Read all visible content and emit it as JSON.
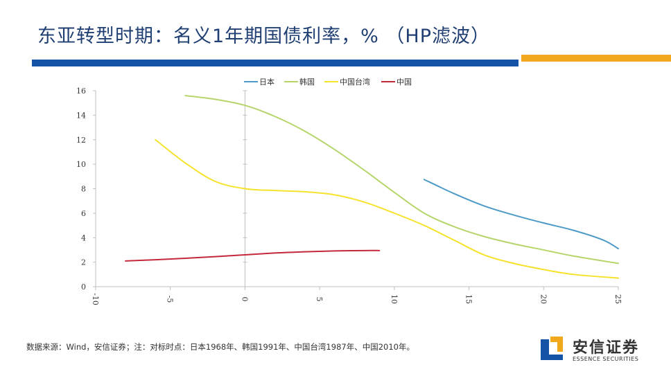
{
  "slide": {
    "title": "东亚转型时期：名义1年期国债利率，%  （HP滤波）",
    "source_note": "数据来源：Wind，安信证券；注：对标时点：日本1968年、韩国1991年、中国台湾1987年、中国2010年。",
    "brand_colors": {
      "blue": "#1553a6",
      "orange": "#f2a81d"
    }
  },
  "logo": {
    "name_cn": "安信证券",
    "name_en": "ESSENCE SECURITIES"
  },
  "chart_data": {
    "type": "line",
    "title": "",
    "xlabel": "",
    "ylabel": "",
    "xlim": [
      -10,
      25
    ],
    "ylim": [
      0,
      16
    ],
    "x_ticks": [
      -10,
      -5,
      0,
      5,
      10,
      15,
      20,
      25
    ],
    "y_ticks": [
      0,
      2,
      4,
      6,
      8,
      10,
      12,
      14,
      16
    ],
    "grid": false,
    "legend_position": "top",
    "series": [
      {
        "name": "日本",
        "color": "#4d9ac6",
        "x": [
          12,
          14,
          16,
          18,
          20,
          22,
          24,
          25
        ],
        "values": [
          8.75,
          7.6,
          6.6,
          5.85,
          5.2,
          4.6,
          3.8,
          3.1
        ]
      },
      {
        "name": "韩国",
        "color": "#b5d56a",
        "x": [
          -4,
          -2,
          0,
          2,
          4,
          6,
          8,
          10,
          12,
          14,
          16,
          18,
          20,
          22,
          25
        ],
        "values": [
          15.6,
          15.3,
          14.8,
          13.9,
          12.7,
          11.2,
          9.5,
          7.7,
          6.0,
          4.9,
          4.1,
          3.5,
          3.0,
          2.5,
          1.9
        ]
      },
      {
        "name": "中国台湾",
        "color": "#f5e22a",
        "x": [
          -6,
          -4,
          -2,
          0,
          2,
          4,
          6,
          8,
          10,
          12,
          14,
          16,
          18,
          20,
          22,
          25
        ],
        "values": [
          12.0,
          10.1,
          8.6,
          8.0,
          7.85,
          7.75,
          7.5,
          6.9,
          6.0,
          5.0,
          3.8,
          2.6,
          1.9,
          1.4,
          1.0,
          0.7
        ]
      },
      {
        "name": "中国",
        "color": "#c4283a",
        "x": [
          -8,
          -6,
          -4,
          -2,
          0,
          2,
          4,
          6,
          8,
          9
        ],
        "values": [
          2.1,
          2.2,
          2.32,
          2.45,
          2.6,
          2.75,
          2.85,
          2.92,
          2.95,
          2.95
        ]
      }
    ]
  }
}
